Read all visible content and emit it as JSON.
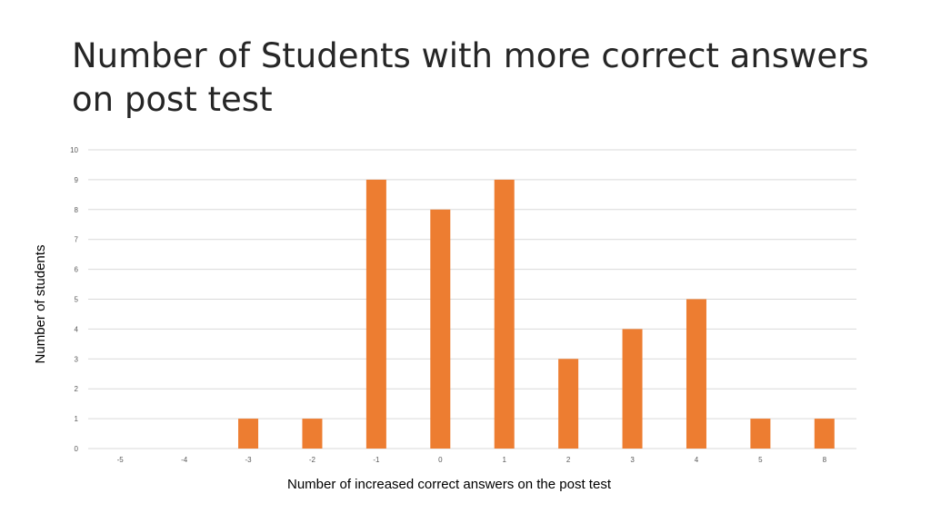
{
  "slide": {
    "title": "Number of Students with more correct answers on post test"
  },
  "chart_data": {
    "type": "bar",
    "title": "",
    "xlabel": "Number of increased correct answers on the post test",
    "ylabel": "Number of students",
    "categories": [
      "-5",
      "-4",
      "-3",
      "-2",
      "-1",
      "0",
      "1",
      "2",
      "3",
      "4",
      "5",
      "8"
    ],
    "values": [
      0,
      0,
      1,
      1,
      9,
      8,
      9,
      3,
      4,
      5,
      1,
      1
    ],
    "ylim": [
      0,
      10
    ],
    "yticks": [
      0,
      1,
      2,
      3,
      4,
      5,
      6,
      7,
      8,
      9,
      10
    ],
    "grid": true,
    "legend": "none",
    "bar_color": "#ED7D31",
    "grid_color": "#D9D9D9"
  }
}
